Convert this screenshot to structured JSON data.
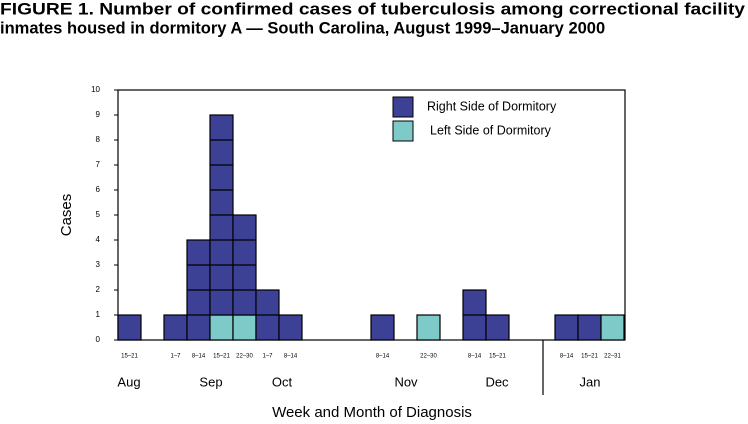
{
  "chart_data": {
    "type": "stacked-box-histogram",
    "title": [
      "FIGURE 1. Number of confirmed cases of tuberculosis among correctional facility",
      "inmates housed in dormitory A — South Carolina, August 1999–January 2000"
    ],
    "x_label": "Week and Month of Diagnosis",
    "y_label": "Cases",
    "categories": [
      "15–21",
      null,
      "1–7",
      "8–14",
      "15–21",
      "22–30",
      "1–7",
      "8–14",
      null,
      null,
      null,
      "8–14",
      null,
      "22–30",
      null,
      "8–14",
      "15–21",
      null,
      null,
      "8–14",
      "15–21",
      "22–31"
    ],
    "months": [
      "Aug",
      "Sep",
      "Oct",
      "Nov",
      "Dec",
      "Jan"
    ],
    "series": [
      {
        "name": "Right Side of Dormitory",
        "color": "#3d4196",
        "values": [
          1,
          0,
          1,
          4,
          8,
          4,
          2,
          1,
          0,
          0,
          0,
          1,
          0,
          0,
          0,
          2,
          1,
          0,
          0,
          1,
          1,
          0
        ]
      },
      {
        "name": "Left Side of Dormitory",
        "color": "#7ecac8",
        "values": [
          0,
          0,
          0,
          0,
          1,
          1,
          0,
          0,
          0,
          0,
          0,
          0,
          0,
          1,
          0,
          0,
          0,
          0,
          0,
          0,
          0,
          1
        ]
      }
    ],
    "ylim": [
      0,
      10
    ],
    "yticks": [
      0,
      1,
      2,
      3,
      4,
      5,
      6,
      7,
      8,
      9,
      10
    ]
  }
}
